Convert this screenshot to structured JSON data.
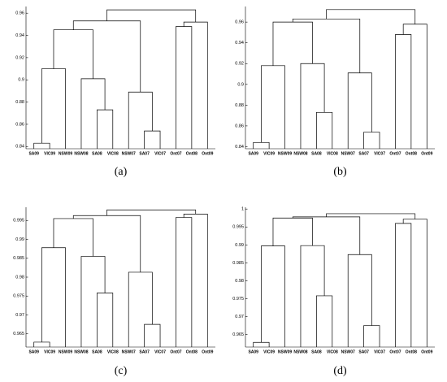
{
  "chart_data": [
    {
      "type": "dendrogram",
      "caption": "(a)",
      "leaves": [
        "SA09",
        "VIC09",
        "NSW09",
        "NSW08",
        "SA08",
        "VIC08",
        "NSW07",
        "SA07",
        "VIC07",
        "Ont07",
        "Ont08",
        "Ont09"
      ],
      "merges": [
        {
          "children": [
            0,
            1
          ],
          "height": 0.843
        },
        {
          "children": [
            12,
            2
          ],
          "height": 0.91
        },
        {
          "children": [
            4,
            5
          ],
          "height": 0.873
        },
        {
          "children": [
            3,
            14
          ],
          "height": 0.901
        },
        {
          "children": [
            7,
            8
          ],
          "height": 0.854
        },
        {
          "children": [
            6,
            16
          ],
          "height": 0.889
        },
        {
          "children": [
            13,
            15
          ],
          "height": 0.945
        },
        {
          "children": [
            18,
            17
          ],
          "height": 0.953
        },
        {
          "children": [
            9,
            10
          ],
          "height": 0.948
        },
        {
          "children": [
            20,
            11
          ],
          "height": 0.952
        },
        {
          "children": [
            19,
            21
          ],
          "height": 0.963
        }
      ],
      "ylim": [
        0.838,
        0.966
      ],
      "yticks": [
        0.84,
        0.86,
        0.88,
        0.9,
        0.92,
        0.94,
        0.96
      ]
    },
    {
      "type": "dendrogram",
      "caption": "(b)",
      "leaves": [
        "SA09",
        "VIC09",
        "NSW09",
        "NSW08",
        "SA08",
        "VIC08",
        "NSW07",
        "SA07",
        "VIC07",
        "Ont07",
        "Ont08",
        "Ont09"
      ],
      "merges": [
        {
          "children": [
            0,
            1
          ],
          "height": 0.844
        },
        {
          "children": [
            12,
            2
          ],
          "height": 0.918
        },
        {
          "children": [
            4,
            5
          ],
          "height": 0.873
        },
        {
          "children": [
            3,
            14
          ],
          "height": 0.92
        },
        {
          "children": [
            7,
            8
          ],
          "height": 0.854
        },
        {
          "children": [
            6,
            16
          ],
          "height": 0.911
        },
        {
          "children": [
            13,
            15
          ],
          "height": 0.96
        },
        {
          "children": [
            18,
            17
          ],
          "height": 0.963
        },
        {
          "children": [
            9,
            10
          ],
          "height": 0.948
        },
        {
          "children": [
            20,
            11
          ],
          "height": 0.958
        },
        {
          "children": [
            19,
            21
          ],
          "height": 0.972
        }
      ],
      "ylim": [
        0.838,
        0.975
      ],
      "yticks": [
        0.84,
        0.86,
        0.88,
        0.9,
        0.92,
        0.94,
        0.96
      ]
    },
    {
      "type": "dendrogram",
      "caption": "(c)",
      "leaves": [
        "SA09",
        "VIC09",
        "NSW09",
        "NSW08",
        "SA08",
        "VIC08",
        "NSW07",
        "SA07",
        "VIC07",
        "Ont07",
        "Ont08",
        "Ont09"
      ],
      "merges": [
        {
          "children": [
            0,
            1
          ],
          "height": 0.9628
        },
        {
          "children": [
            12,
            2
          ],
          "height": 0.9878
        },
        {
          "children": [
            4,
            5
          ],
          "height": 0.9758
        },
        {
          "children": [
            3,
            14
          ],
          "height": 0.9855
        },
        {
          "children": [
            7,
            8
          ],
          "height": 0.9675
        },
        {
          "children": [
            6,
            16
          ],
          "height": 0.9813
        },
        {
          "children": [
            13,
            15
          ],
          "height": 0.9955
        },
        {
          "children": [
            18,
            17
          ],
          "height": 0.9963
        },
        {
          "children": [
            9,
            10
          ],
          "height": 0.9958
        },
        {
          "children": [
            20,
            11
          ],
          "height": 0.9967
        },
        {
          "children": [
            19,
            21
          ],
          "height": 0.9978
        }
      ],
      "ylim": [
        0.9615,
        0.9985
      ],
      "yticks": [
        0.965,
        0.97,
        0.975,
        0.98,
        0.985,
        0.99,
        0.995
      ]
    },
    {
      "type": "dendrogram",
      "caption": "(d)",
      "leaves": [
        "SA09",
        "VIC09",
        "NSW09",
        "NSW08",
        "SA08",
        "VIC08",
        "NSW07",
        "SA07",
        "VIC07",
        "Ont07",
        "Ont08",
        "Ont09"
      ],
      "merges": [
        {
          "children": [
            0,
            1
          ],
          "height": 0.9628
        },
        {
          "children": [
            12,
            2
          ],
          "height": 0.9897
        },
        {
          "children": [
            4,
            5
          ],
          "height": 0.9758
        },
        {
          "children": [
            3,
            14
          ],
          "height": 0.9898
        },
        {
          "children": [
            7,
            8
          ],
          "height": 0.9675
        },
        {
          "children": [
            6,
            16
          ],
          "height": 0.9873
        },
        {
          "children": [
            13,
            15
          ],
          "height": 0.9975
        },
        {
          "children": [
            18,
            17
          ],
          "height": 0.9978
        },
        {
          "children": [
            9,
            10
          ],
          "height": 0.996
        },
        {
          "children": [
            20,
            11
          ],
          "height": 0.9972
        },
        {
          "children": [
            19,
            21
          ],
          "height": 0.9987
        }
      ],
      "ylim": [
        0.9615,
        1.0005
      ],
      "yticks": [
        0.965,
        0.97,
        0.975,
        0.98,
        0.985,
        0.99,
        0.995,
        1
      ]
    }
  ]
}
